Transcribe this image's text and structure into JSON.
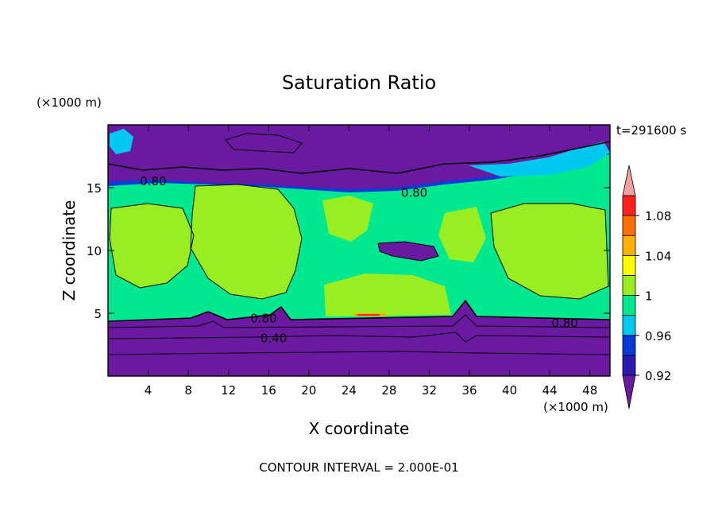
{
  "chart_data": {
    "type": "heatmap",
    "title": "Saturation Ratio",
    "xlabel": "X coordinate",
    "ylabel": "Z coordinate",
    "x_unit": "(×1000 m)",
    "y_unit": "(×1000 m)",
    "time_label": "t=291600 s",
    "footer": "CONTOUR INTERVAL = 2.000E-01",
    "xlim": [
      0,
      50
    ],
    "ylim": [
      0,
      20
    ],
    "x_ticks": [
      4,
      8,
      12,
      16,
      20,
      24,
      28,
      32,
      36,
      40,
      44,
      48
    ],
    "y_ticks": [
      5,
      10,
      15
    ],
    "colorbar": {
      "levels": [
        0.92,
        0.94,
        0.96,
        0.98,
        1.0,
        1.02,
        1.04,
        1.06,
        1.08,
        1.1
      ],
      "labels": [
        "0.92",
        "0.96",
        "1",
        "1.04",
        "1.08"
      ],
      "label_values": [
        0.92,
        0.96,
        1.0,
        1.04,
        1.08
      ],
      "colors": [
        "#6a1aa0",
        "#2a1ab0",
        "#0a3ad8",
        "#00c8f0",
        "#00e890",
        "#99ee22",
        "#ffff00",
        "#ffb000",
        "#ff7000",
        "#ff2020",
        "#f0a0a0"
      ]
    },
    "contour_labels": [
      {
        "text": "0.80",
        "x": 4.5,
        "z": 15.5
      },
      {
        "text": "0.80",
        "x": 30.5,
        "z": 14.6
      },
      {
        "text": "0.80",
        "x": 45.5,
        "z": 4.2
      },
      {
        "text": "0.80",
        "x": 15.5,
        "z": 4.6
      },
      {
        "text": "0.40",
        "x": 16.5,
        "z": 3.0
      }
    ]
  }
}
